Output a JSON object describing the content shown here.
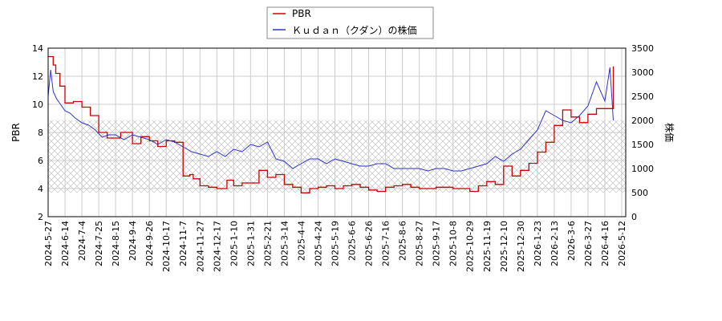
{
  "chart_data": {
    "type": "line",
    "title": "",
    "xlabel": "",
    "ylabel_left": "PBR",
    "ylabel_right": "株価",
    "ylim_left": [
      2,
      14
    ],
    "ylim_right": [
      0,
      3500
    ],
    "yticks_left": [
      "2",
      "4",
      "6",
      "8",
      "10",
      "12",
      "14"
    ],
    "yticks_right": [
      "0",
      "500",
      "1000",
      "1500",
      "2000",
      "2500",
      "3000",
      "3500"
    ],
    "grid": true,
    "hatch_band_right": [
      500,
      2000
    ],
    "legend_position": "top-center",
    "x_tick_labels": [
      "2024-5-27",
      "2024-6-14",
      "2024-7-4",
      "2024-7-25",
      "2024-8-15",
      "2024-9-4",
      "2024-9-26",
      "2024-10-17",
      "2024-11-7",
      "2024-11-27",
      "2024-12-17",
      "2025-1-10",
      "2025-1-31",
      "2025-2-21",
      "2025-3-14",
      "2025-4-4",
      "2025-4-24",
      "2025-5-19",
      "2025-6-6",
      "2025-6-26",
      "2025-7-16",
      "2025-8-6",
      "2025-8-27",
      "2025-9-17",
      "2025-10-8",
      "2025-10-29",
      "2025-11-19",
      "2025-12-10",
      "2025-12-30",
      "2026-1-23",
      "2026-2-13",
      "2026-3-6",
      "2026-3-27",
      "2026-4-16",
      "2026-5-12"
    ],
    "series": [
      {
        "name": "PBR",
        "axis": "left",
        "color": "#cc0000",
        "x_index": [
          0,
          0.3,
          0.45,
          0.7,
          1.0,
          1.5,
          2.0,
          2.5,
          3.0,
          3.5,
          3.8,
          4.3,
          5.0,
          5.5,
          6.0,
          6.5,
          7.0,
          7.5,
          8.0,
          8.4,
          8.6,
          9.0,
          9.5,
          10.0,
          10.3,
          10.6,
          11.0,
          11.5,
          12.0,
          12.5,
          13.0,
          13.5,
          14.0,
          14.5,
          15.0,
          15.5,
          16.0,
          16.5,
          17.0,
          17.5,
          18.0,
          18.5,
          19.0,
          19.5,
          20.0,
          20.5,
          21.0,
          21.5,
          22.0,
          22.5,
          23.0,
          23.5,
          24.0,
          24.5,
          25.0,
          25.5,
          26.0,
          26.5,
          27.0,
          27.5,
          28.0,
          28.5,
          29.0,
          29.5,
          30.0,
          30.5,
          31.0,
          31.5,
          32.0,
          32.5,
          33.0,
          33.3,
          33.5
        ],
        "values": [
          13.4,
          12.8,
          12.2,
          11.3,
          10.1,
          10.2,
          9.8,
          9.2,
          8.0,
          7.6,
          7.6,
          8.0,
          7.2,
          7.7,
          7.4,
          7.0,
          7.4,
          7.3,
          4.9,
          5.0,
          4.7,
          4.2,
          4.1,
          4.0,
          4.0,
          4.6,
          4.2,
          4.4,
          4.4,
          5.3,
          4.8,
          5.0,
          4.3,
          4.1,
          3.7,
          4.0,
          4.1,
          4.2,
          4.0,
          4.2,
          4.3,
          4.1,
          3.9,
          3.8,
          4.1,
          4.2,
          4.3,
          4.1,
          4.0,
          4.0,
          4.1,
          4.1,
          4.0,
          4.0,
          3.8,
          4.2,
          4.5,
          4.3,
          5.6,
          4.9,
          5.3,
          5.8,
          6.6,
          7.3,
          8.5,
          9.6,
          9.1,
          8.7,
          9.3,
          9.7,
          9.7,
          9.7,
          12.7
        ]
      },
      {
        "name": "Ｋｕｄａｎ（クダン）の株価",
        "axis": "right",
        "color": "#3333cc",
        "x_index": [
          0,
          0.15,
          0.3,
          0.5,
          0.7,
          1.0,
          1.3,
          1.6,
          2.0,
          2.4,
          2.8,
          3.2,
          3.6,
          4.0,
          4.5,
          5.0,
          5.5,
          6.0,
          6.5,
          7.0,
          7.5,
          8.0,
          8.5,
          9.0,
          9.5,
          10.0,
          10.5,
          11.0,
          11.5,
          12.0,
          12.5,
          13.0,
          13.5,
          14.0,
          14.5,
          15.0,
          15.5,
          16.0,
          16.5,
          17.0,
          17.5,
          18.0,
          18.5,
          19.0,
          19.5,
          20.0,
          20.5,
          21.0,
          21.5,
          22.0,
          22.5,
          23.0,
          23.5,
          24.0,
          24.5,
          25.0,
          25.5,
          26.0,
          26.5,
          27.0,
          27.5,
          28.0,
          28.5,
          29.0,
          29.5,
          30.0,
          30.5,
          31.0,
          31.5,
          32.0,
          32.5,
          33.0,
          33.3,
          33.5
        ],
        "values": [
          2500,
          3050,
          2600,
          2450,
          2350,
          2200,
          2150,
          2050,
          1950,
          1900,
          1800,
          1650,
          1700,
          1700,
          1600,
          1700,
          1650,
          1600,
          1500,
          1600,
          1550,
          1450,
          1350,
          1300,
          1250,
          1350,
          1250,
          1400,
          1350,
          1500,
          1450,
          1550,
          1200,
          1150,
          1000,
          1100,
          1200,
          1200,
          1100,
          1200,
          1150,
          1100,
          1050,
          1050,
          1100,
          1100,
          1000,
          1000,
          1000,
          1000,
          950,
          1000,
          1000,
          950,
          950,
          1000,
          1050,
          1100,
          1250,
          1150,
          1300,
          1400,
          1600,
          1800,
          2200,
          2100,
          2000,
          1950,
          2100,
          2300,
          2800,
          2400,
          3100,
          2000
        ]
      }
    ]
  }
}
